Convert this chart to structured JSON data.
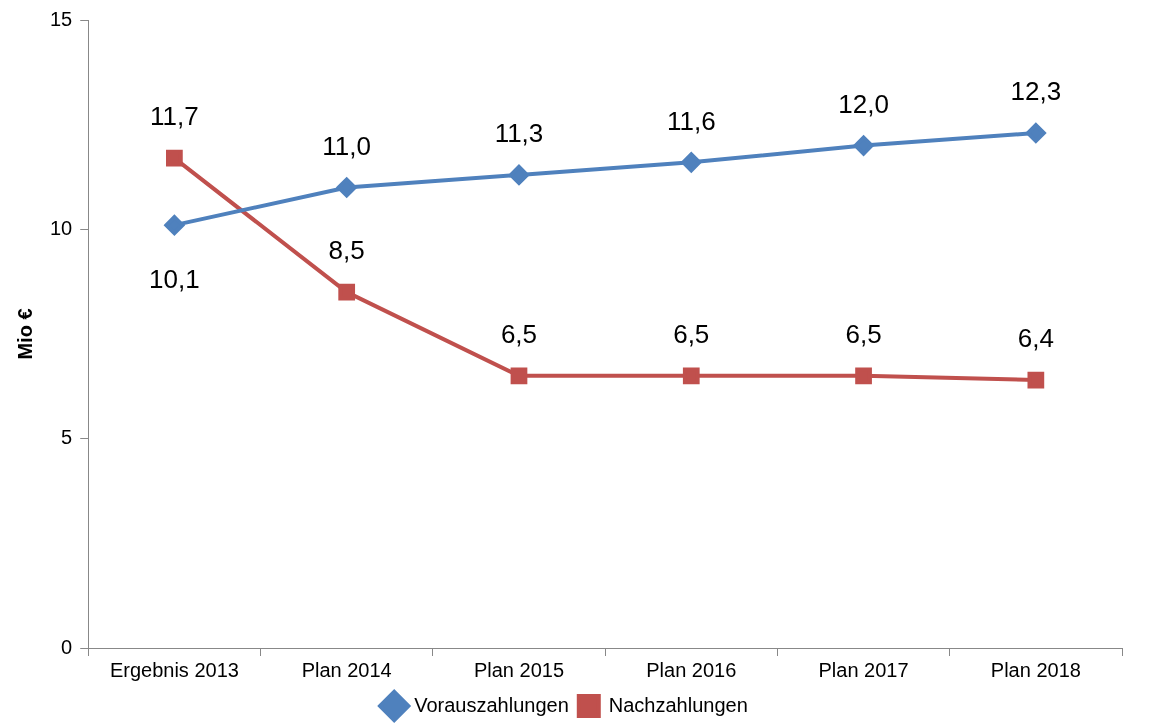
{
  "chart_data": {
    "type": "line",
    "ylabel": "Mio €",
    "categories": [
      "Ergebnis 2013",
      "Plan 2014",
      "Plan 2015",
      "Plan 2016",
      "Plan 2017",
      "Plan 2018"
    ],
    "series": [
      {
        "name": "Vorauszahlungen",
        "color": "#4f81bd",
        "marker": "diamond",
        "values": [
          10.1,
          11.0,
          11.3,
          11.6,
          12.0,
          12.3
        ],
        "value_labels": [
          "10,1",
          "11,0",
          "11,3",
          "11,6",
          "12,0",
          "12,3"
        ]
      },
      {
        "name": "Nachzahlungen",
        "color": "#c0504d",
        "marker": "square",
        "values": [
          11.7,
          8.5,
          6.5,
          6.5,
          6.5,
          6.4
        ],
        "value_labels": [
          "11,7",
          "8,5",
          "6,5",
          "6,5",
          "6,5",
          "6,4"
        ]
      }
    ],
    "ylim": [
      0,
      15
    ],
    "yticks": [
      0,
      5,
      10,
      15
    ],
    "grid": false,
    "legend": "bottom"
  }
}
